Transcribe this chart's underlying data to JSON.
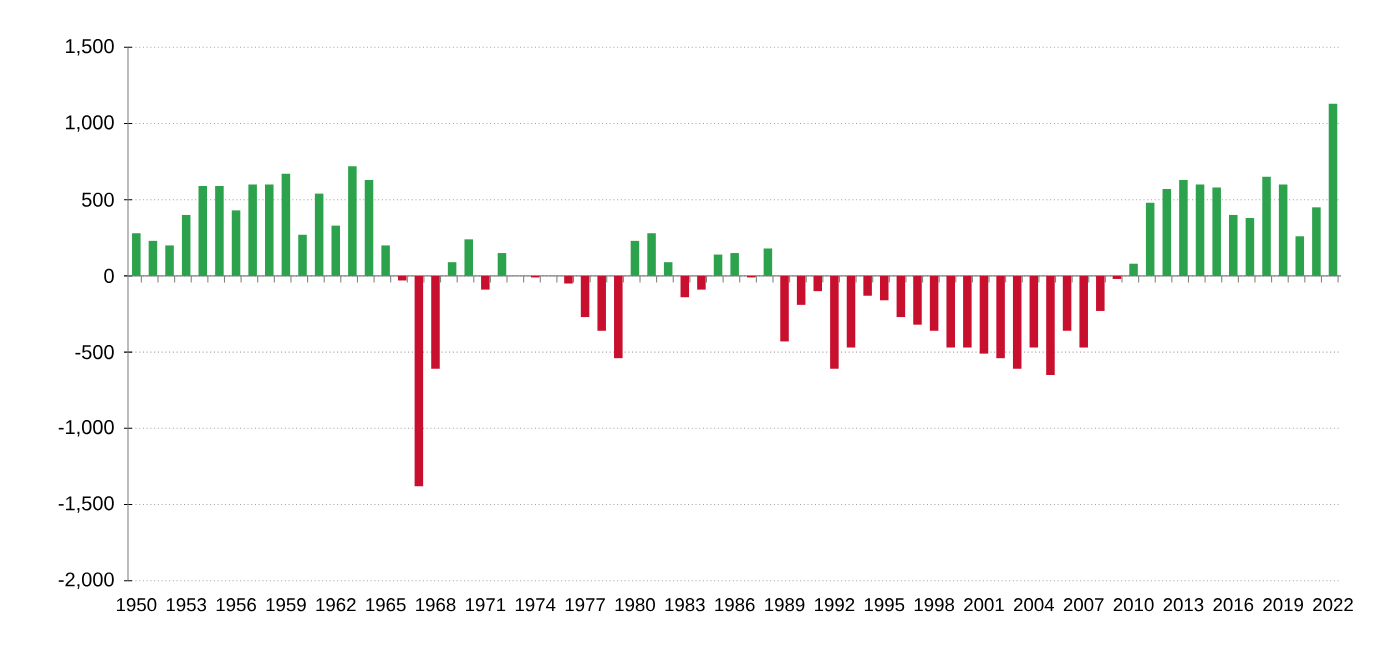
{
  "chart_data": {
    "type": "bar",
    "categories": [
      "1950",
      null,
      null,
      "1953",
      null,
      null,
      "1956",
      null,
      null,
      "1959",
      null,
      null,
      "1962",
      null,
      null,
      "1965",
      null,
      null,
      "1968",
      null,
      null,
      "1971",
      null,
      null,
      "1974",
      null,
      null,
      "1977",
      null,
      null,
      "1980",
      null,
      null,
      "1983",
      null,
      null,
      "1986",
      null,
      null,
      "1989",
      null,
      null,
      "1992",
      null,
      null,
      "1995",
      null,
      null,
      "1998",
      null,
      null,
      "2001",
      null,
      null,
      "2004",
      null,
      null,
      "2007",
      null,
      null,
      "2010",
      null,
      null,
      "2013",
      null,
      null,
      "2016",
      null,
      null,
      "2019",
      null,
      null,
      "2022"
    ],
    "values": [
      280,
      230,
      200,
      400,
      590,
      590,
      430,
      600,
      600,
      670,
      270,
      540,
      330,
      720,
      630,
      200,
      -30,
      -1380,
      -610,
      90,
      240,
      -90,
      150,
      0,
      -10,
      0,
      -50,
      -270,
      -360,
      -540,
      230,
      280,
      90,
      -140,
      -90,
      140,
      150,
      -10,
      180,
      -430,
      -190,
      -100,
      -610,
      -470,
      -130,
      -160,
      -270,
      -320,
      -360,
      -470,
      -470,
      -510,
      -540,
      -610,
      -470,
      -650,
      -360,
      -470,
      -230,
      -20,
      80,
      480,
      570,
      630,
      600,
      580,
      400,
      380,
      650,
      600,
      260,
      450,
      1130
    ],
    "colors": [
      "#2ca24c",
      "#2ca24c",
      "#2ca24c",
      "#2ca24c",
      "#2ca24c",
      "#2ca24c",
      "#2ca24c",
      "#2ca24c",
      "#2ca24c",
      "#2ca24c",
      "#2ca24c",
      "#2ca24c",
      "#2ca24c",
      "#2ca24c",
      "#2ca24c",
      "#2ca24c",
      "#c8102e",
      "#c8102e",
      "#c8102e",
      "#2ca24c",
      "#2ca24c",
      "#c8102e",
      "#2ca24c",
      "#2ca24c",
      "#c8102e",
      "#2ca24c",
      "#c8102e",
      "#c8102e",
      "#c8102e",
      "#c8102e",
      "#2ca24c",
      "#2ca24c",
      "#2ca24c",
      "#c8102e",
      "#c8102e",
      "#2ca24c",
      "#2ca24c",
      "#c8102e",
      "#2ca24c",
      "#c8102e",
      "#c8102e",
      "#c8102e",
      "#c8102e",
      "#c8102e",
      "#c8102e",
      "#c8102e",
      "#c8102e",
      "#c8102e",
      "#c8102e",
      "#c8102e",
      "#c8102e",
      "#c8102e",
      "#c8102e",
      "#c8102e",
      "#c8102e",
      "#c8102e",
      "#c8102e",
      "#c8102e",
      "#c8102e",
      "#c8102e",
      "#2ca24c",
      "#2ca24c",
      "#2ca24c",
      "#2ca24c",
      "#2ca24c",
      "#2ca24c",
      "#2ca24c",
      "#2ca24c",
      "#2ca24c",
      "#2ca24c",
      "#2ca24c",
      "#2ca24c",
      "#2ca24c"
    ],
    "ylim": [
      -2000,
      1500
    ],
    "yticks": [
      {
        "value": -2000,
        "label": "-2,000"
      },
      {
        "value": -1500,
        "label": "-1,500"
      },
      {
        "value": -1000,
        "label": "-1,000"
      },
      {
        "value": -500,
        "label": "-500"
      },
      0,
      {
        "value": 500,
        "label": "500"
      },
      {
        "value": 1000,
        "label": "1,000"
      },
      {
        "value": 1500,
        "label": "1,500"
      }
    ],
    "grid": "y"
  }
}
